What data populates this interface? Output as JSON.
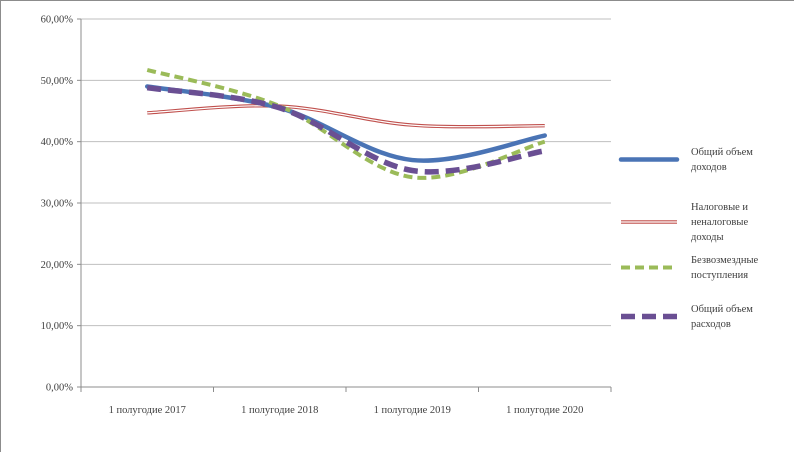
{
  "chart_data": {
    "type": "line",
    "title": "",
    "xlabel": "",
    "ylabel": "",
    "categories": [
      "1 полугодие 2017",
      "1 полугодие 2018",
      "1 полугодие 2019",
      "1 полугодие 2020"
    ],
    "ylim": [
      0,
      60
    ],
    "ytick_values": [
      0,
      10,
      20,
      30,
      40,
      50,
      60
    ],
    "ytick_labels": [
      "0,00%",
      "10,00%",
      "20,00%",
      "30,00%",
      "40,00%",
      "50,00%",
      "60,00%"
    ],
    "grid": true,
    "legend_position": "right",
    "series": [
      {
        "name": "Общий объем доходов",
        "legend_lines": [
          "Общий объем",
          "доходов"
        ],
        "values": [
          49,
          45.5,
          37,
          41
        ],
        "color": "#4a74b5",
        "style": "solid-thick"
      },
      {
        "name": "Налоговые и неналоговые доходы",
        "legend_lines": [
          "Налоговые и",
          "неналоговые",
          "доходы"
        ],
        "values": [
          44.7,
          45.8,
          42.7,
          42.6
        ],
        "color": "#c0504d",
        "style": "double-thin"
      },
      {
        "name": "Безвозмездные поступления",
        "legend_lines": [
          "Безвозмездные",
          "поступления"
        ],
        "values": [
          51.7,
          45.8,
          34.2,
          40
        ],
        "color": "#9bbb59",
        "style": "dashed"
      },
      {
        "name": "Общий объем расходов",
        "legend_lines": [
          "Общий объем",
          "расходов"
        ],
        "values": [
          48.8,
          45.5,
          35.3,
          38.5
        ],
        "color": "#6a4f93",
        "style": "dashed-thick"
      }
    ]
  }
}
